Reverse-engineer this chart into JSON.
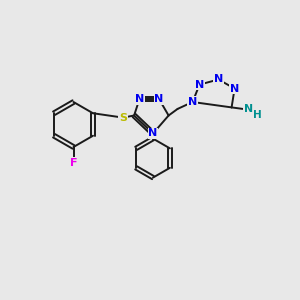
{
  "bg": "#e8e8e8",
  "bond_color": "#1a1a1a",
  "N_color": "#0000ee",
  "S_color": "#bbbb00",
  "F_color": "#ee00ee",
  "NH_color": "#009090",
  "fs": 7.5,
  "lw": 1.4,
  "xlim": [
    0,
    10
  ],
  "ylim": [
    0,
    10
  ]
}
